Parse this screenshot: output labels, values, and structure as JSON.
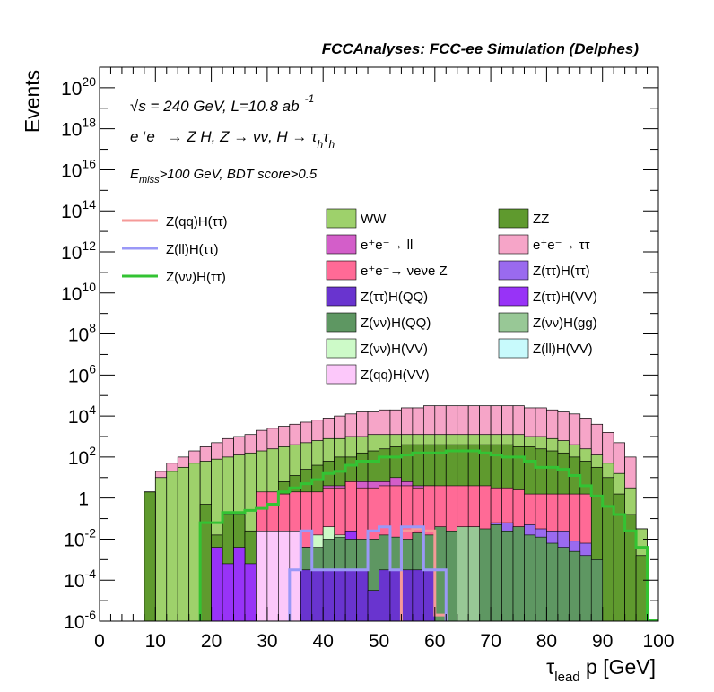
{
  "chart_data": {
    "type": "histogram-stacked-log",
    "title": "FCCAnalyses: FCC-ee Simulation (Delphes)",
    "xlabel_tau": "τ",
    "xlabel_sub": "lead",
    "xlabel_rest": " p [GeV]",
    "ylabel": "Events",
    "xlim": [
      0,
      100
    ],
    "ylim_log10": [
      -6,
      21
    ],
    "x_ticks": [
      "0",
      "10",
      "20",
      "30",
      "40",
      "50",
      "60",
      "70",
      "80",
      "90",
      "100"
    ],
    "y_ticks": [
      {
        "exp": -6,
        "label": "10",
        "sup": "-6"
      },
      {
        "exp": -4,
        "label": "10",
        "sup": "-4"
      },
      {
        "exp": -2,
        "label": "10",
        "sup": "-2"
      },
      {
        "exp": 0,
        "label": "1",
        "sup": ""
      },
      {
        "exp": 2,
        "label": "10",
        "sup": "2"
      },
      {
        "exp": 4,
        "label": "10",
        "sup": "4"
      },
      {
        "exp": 6,
        "label": "10",
        "sup": "6"
      },
      {
        "exp": 8,
        "label": "10",
        "sup": "8"
      },
      {
        "exp": 10,
        "label": "10",
        "sup": "10"
      },
      {
        "exp": 12,
        "label": "10",
        "sup": "12"
      },
      {
        "exp": 14,
        "label": "10",
        "sup": "14"
      },
      {
        "exp": 16,
        "label": "10",
        "sup": "16"
      },
      {
        "exp": 18,
        "label": "10",
        "sup": "18"
      },
      {
        "exp": 20,
        "label": "10",
        "sup": "20"
      }
    ],
    "annotations": {
      "energy": "√s = 240 GeV, L=10.8 ab",
      "lumi_sup": "-1",
      "process": "e⁺e⁻ → Z H, Z → νν, H → τ",
      "process_sub1": "h",
      "process_tau2": "τ",
      "process_sub2": "h",
      "cut_E": "E",
      "cut_sub": "miss",
      "cut_rest": ">100 GeV, BDT score>0.5"
    },
    "bin_width": 2,
    "stack_edges_x": [
      8,
      10,
      12,
      14,
      16,
      18,
      20,
      22,
      24,
      26,
      28,
      30,
      32,
      34,
      36,
      38,
      40,
      42,
      44,
      46,
      48,
      50,
      52,
      54,
      56,
      58,
      60,
      62,
      64,
      66,
      68,
      70,
      72,
      74,
      76,
      78,
      80,
      82,
      84,
      86,
      88,
      90,
      92,
      94,
      96,
      98
    ],
    "stack_layers": [
      {
        "name": "ZZ",
        "color": "#5f9a2e",
        "log10_top": [
          0.3,
          -7,
          -7,
          -7,
          -7,
          -0.3,
          -1.8,
          -0.8,
          -0.8,
          -1.6,
          -0.3,
          0.3,
          0.8,
          1.1,
          1.4,
          1.6,
          1.8,
          2.0,
          2.0,
          2.2,
          2.3,
          2.4,
          2.5,
          2.6,
          2.6,
          2.6,
          2.6,
          2.6,
          2.6,
          2.6,
          2.6,
          2.6,
          2.6,
          2.5,
          2.5,
          2.4,
          2.3,
          2.2,
          2.0,
          1.8,
          1.5,
          1.0,
          0.2,
          -0.8,
          -2.8
        ]
      },
      {
        "name": "WW",
        "color": "#9ed16b",
        "log10_top": [
          0.3,
          1.0,
          1.3,
          1.5,
          1.7,
          1.8,
          1.9,
          2.0,
          2.1,
          2.2,
          2.3,
          2.4,
          2.5,
          2.6,
          2.7,
          2.8,
          2.9,
          2.9,
          3.0,
          3.0,
          3.1,
          3.1,
          3.1,
          3.1,
          3.1,
          3.1,
          3.1,
          3.1,
          3.1,
          3.1,
          3.1,
          3.1,
          3.1,
          3.1,
          3.0,
          3.0,
          2.9,
          2.8,
          2.6,
          2.4,
          2.1,
          1.7,
          1.2,
          0.5,
          -1.5
        ]
      },
      {
        "name": "e+e- → ττ",
        "color": "#f6a5c8",
        "log10_top": [
          0.3,
          1.3,
          1.7,
          2.0,
          2.3,
          2.5,
          2.7,
          2.9,
          3.0,
          3.1,
          3.3,
          3.4,
          3.5,
          3.6,
          3.7,
          3.8,
          3.9,
          4.0,
          4.1,
          4.2,
          4.2,
          4.3,
          4.3,
          4.4,
          4.4,
          4.5,
          4.5,
          4.5,
          4.5,
          4.5,
          4.5,
          4.5,
          4.5,
          4.5,
          4.4,
          4.4,
          4.3,
          4.2,
          4.1,
          3.9,
          3.6,
          3.2,
          2.7,
          2.0,
          -1.5
        ]
      }
    ],
    "ZZ_box": {
      "name": "ZZ",
      "color": "#5f9a2e",
      "x0": 8,
      "x1": 10,
      "log10_top": 0.3
    },
    "signal_blocks": [
      {
        "name": "e+e- → ll",
        "color": "#d35ec9",
        "x": [
          40,
          42,
          44,
          46,
          48,
          50,
          52,
          54,
          56,
          58
        ],
        "log10_top": [
          0.6,
          0.6,
          0.8,
          0.8,
          0.8,
          0.8,
          1.0,
          0.8,
          0.6,
          0.6
        ]
      },
      {
        "name": "e+e- → νeνe Z",
        "color": "#ff6a96",
        "x": [
          28,
          30,
          32,
          34,
          36,
          38,
          40,
          42,
          44,
          46,
          48,
          50,
          52,
          54,
          56,
          58,
          60,
          62,
          64,
          66,
          68,
          70,
          72,
          74,
          76,
          78,
          80,
          82,
          84,
          86
        ],
        "log10_top": [
          0.3,
          0.3,
          0.2,
          0.3,
          0.3,
          0.3,
          0.5,
          0.5,
          0.8,
          0.5,
          0.5,
          0.6,
          0.6,
          0.6,
          0.5,
          0.6,
          0.6,
          0.6,
          0.6,
          0.6,
          0.6,
          0.5,
          0.5,
          0.4,
          0.2,
          0.2,
          0.2,
          0.2,
          0.2,
          0.2
        ]
      },
      {
        "name": "Z(ττ)H(ττ)",
        "color": "#9a6aef",
        "x": [
          70,
          72,
          74,
          76,
          78,
          80,
          82,
          84,
          86
        ],
        "log10_top": [
          -1.2,
          -1.2,
          -1.4,
          -1.3,
          -1.5,
          -1.6,
          -1.6,
          -2.1,
          -2.2
        ]
      },
      {
        "name": "Z(ττ)H(VV)",
        "color": "#9833f7",
        "x": [
          20,
          22,
          24,
          26,
          28,
          30,
          32,
          34,
          36,
          38,
          40,
          42,
          44,
          46,
          48,
          50,
          52,
          54,
          56,
          58
        ],
        "log10_top": [
          -2.4,
          -3.2,
          -2.4,
          -3.2,
          -2.4,
          -2.4,
          -2.4,
          -2.4,
          -2.4,
          -2.4,
          -1.6,
          -2.4,
          -1.6,
          -2.4,
          -2.4,
          -2.4,
          -2.4,
          -2.2,
          -1.8,
          -2.4
        ]
      },
      {
        "name": "Z(qq)H(VV)",
        "color": "#fcc8fa",
        "x": [
          28,
          30,
          32,
          34
        ],
        "log10_top": [
          -1.6,
          -1.6,
          -1.6,
          -1.6
        ]
      },
      {
        "name": "Z(νν)H(VV)",
        "color": "#cdfac8",
        "x": [
          38,
          40,
          42
        ],
        "log10_top": [
          -1.8,
          -1.4,
          -1.8
        ]
      },
      {
        "name": "Z(ll)H(VV)",
        "color": "#c8fafc",
        "x": [
          44,
          46,
          48
        ],
        "log10_top": [
          -2.4,
          -2.4,
          -2.4
        ]
      },
      {
        "name": "Z(νν)H(QQ)",
        "color": "#5e9762",
        "x": [
          36,
          38,
          40,
          42,
          44,
          46,
          48,
          50,
          52,
          54,
          56,
          58,
          60,
          62,
          64,
          66,
          68,
          70,
          72,
          74,
          76,
          78,
          80,
          82,
          84,
          86,
          88
        ],
        "log10_top": [
          -2.4,
          -2.4,
          -2.0,
          -1.9,
          -2.0,
          -2.0,
          -2.0,
          -1.8,
          -1.9,
          -2.0,
          -1.7,
          -1.8,
          -1.4,
          -1.6,
          -1.5,
          -1.4,
          -1.5,
          -1.3,
          -1.6,
          -1.4,
          -1.8,
          -1.9,
          -2.2,
          -2.4,
          -2.6,
          -2.8,
          -3.0
        ]
      },
      {
        "name": "Z(ττ)H(QQ)",
        "color": "#6934cf",
        "x": [
          36,
          38,
          40,
          42,
          44,
          46,
          48,
          50,
          52,
          54,
          56,
          58
        ],
        "log10_top": [
          -3.5,
          -3.5,
          -3.5,
          -3.5,
          -3.5,
          -3.5,
          -4.5,
          -3.5,
          -3.5,
          -3.5,
          -3.5,
          -3.5
        ]
      },
      {
        "name": "Z(νν)H(gg)",
        "color": "#98c896",
        "x": [
          64,
          66
        ],
        "log10_top": [
          -1.4,
          -1.4
        ]
      }
    ],
    "line_series": [
      {
        "name": "Z(qq)H(ττ)",
        "color": "#f59a98",
        "x": [
          54,
          56,
          58,
          60
        ],
        "log10": [
          -1.6,
          -1.5,
          -1.6,
          -5.7
        ]
      },
      {
        "name": "Z(ll)H(ττ)",
        "color": "#9a98f7",
        "x": [
          34,
          36,
          38,
          46,
          48,
          50,
          52,
          54,
          56,
          58,
          60
        ],
        "log10": [
          -3.5,
          -1.6,
          -3.5,
          -3.5,
          -1.6,
          -1.4,
          -3.5,
          -1.4,
          -1.4,
          -3.5,
          -3.5
        ]
      },
      {
        "name": "Z(νν)H(ττ)",
        "color": "#33c333",
        "x": [
          18,
          20,
          22,
          24,
          26,
          28,
          30,
          32,
          34,
          36,
          38,
          40,
          42,
          44,
          46,
          48,
          50,
          52,
          54,
          56,
          58,
          60,
          62,
          64,
          66,
          68,
          70,
          72,
          74,
          76,
          78,
          80,
          82,
          84,
          86,
          88,
          90,
          92,
          94,
          96,
          98
        ],
        "log10": [
          -1.2,
          -1.2,
          -0.7,
          -0.7,
          -0.6,
          -0.5,
          -0.3,
          0.3,
          0.5,
          0.7,
          0.9,
          1.2,
          1.3,
          1.6,
          1.8,
          1.8,
          2.0,
          2.0,
          2.1,
          2.2,
          2.2,
          2.2,
          2.3,
          2.3,
          2.3,
          2.2,
          2.1,
          2.0,
          2.0,
          1.8,
          1.5,
          1.5,
          1.4,
          1.1,
          0.6,
          0.1,
          -0.4,
          -0.8,
          -1.6,
          -2.4,
          -6
        ]
      }
    ],
    "legend_lines": [
      {
        "name": "Z(qq)H(ττ)",
        "color": "#f59a98"
      },
      {
        "name": "Z(ll)H(ττ)",
        "color": "#9a98f7"
      },
      {
        "name": "Z(νν)H(ττ)",
        "color": "#33c333"
      }
    ],
    "legend_col1": [
      {
        "name": "WW",
        "color": "#9ed16b"
      },
      {
        "name": "e⁺e⁻→ ll",
        "color": "#d35ec9"
      },
      {
        "name": "e⁺e⁻→ νeνe Z",
        "color": "#ff6a96"
      },
      {
        "name": "Z(ττ)H(QQ)",
        "color": "#6934cf"
      },
      {
        "name": "Z(νν)H(QQ)",
        "color": "#5e9762"
      },
      {
        "name": "Z(νν)H(VV)",
        "color": "#cdfac8"
      },
      {
        "name": "Z(qq)H(VV)",
        "color": "#fcc8fa"
      }
    ],
    "legend_col2": [
      {
        "name": "ZZ",
        "color": "#5f9a2e"
      },
      {
        "name": "e⁺e⁻→ ττ",
        "color": "#f6a5c8"
      },
      {
        "name": "Z(ττ)H(ττ)",
        "color": "#9a6aef"
      },
      {
        "name": "Z(ττ)H(VV)",
        "color": "#9833f7"
      },
      {
        "name": "Z(νν)H(gg)",
        "color": "#98c896"
      },
      {
        "name": "Z(ll)H(VV)",
        "color": "#c8fafc"
      }
    ]
  }
}
